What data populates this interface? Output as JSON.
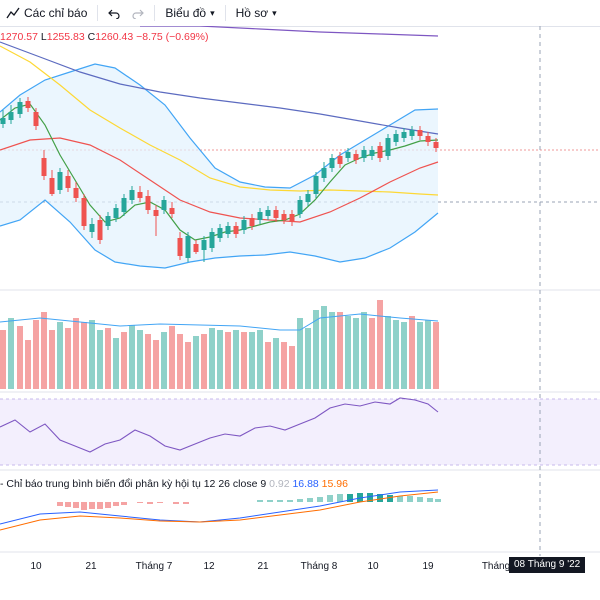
{
  "toolbar": {
    "indicators_label": "Các chỉ báo",
    "chart_label": "Biểu đồ",
    "profile_label": "Hồ sơ"
  },
  "ohlc": {
    "h_value": "1270.57",
    "l_label": "L",
    "l_value": "1255.83",
    "c_label": "C",
    "c_value": "1260.43",
    "change": "−8.75 (−0.69%)"
  },
  "macd": {
    "title": "- Chỉ báo trung bình biến đổi phân kỳ hội tụ 12 26 close 9",
    "hist": "0.92",
    "macd_line": "16.88",
    "signal": "15.96"
  },
  "x_axis": {
    "labels": [
      "10",
      "21",
      "Tháng 7",
      "12",
      "21",
      "Tháng 8",
      "10",
      "19",
      "Tháng"
    ],
    "crosshair": "08 Tháng 9 '22"
  },
  "colors": {
    "up": "#26a69a",
    "down": "#ef5350",
    "bb_fill": "#e3f2fd",
    "bb_line": "#42a5f5",
    "ma_short": "#43a047",
    "ma_mid": "#ef5350",
    "ma_long": "#fdd835",
    "ma_xlong": "#7e57c2",
    "rsi": "#7e57c2"
  }
}
